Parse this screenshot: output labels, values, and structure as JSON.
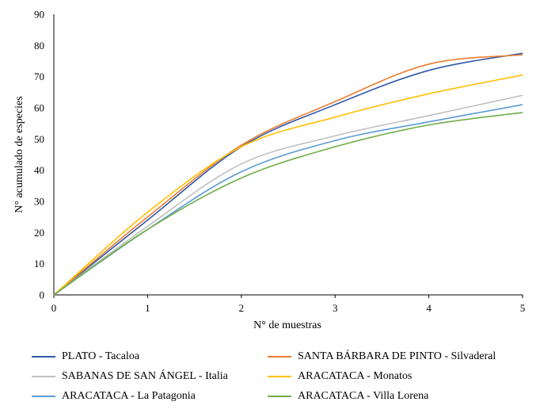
{
  "chart_data": {
    "type": "line",
    "xlabel": "N° de muestras",
    "ylabel": "N° acumulado de especies",
    "xlim": [
      0,
      5
    ],
    "ylim": [
      0,
      90
    ],
    "xticks": [
      "0",
      "1",
      "2",
      "3",
      "4",
      "5"
    ],
    "yticks": [
      "0",
      "10",
      "20",
      "30",
      "40",
      "50",
      "60",
      "70",
      "80",
      "90"
    ],
    "grid": false,
    "legend_position": "bottom",
    "x": [
      0,
      1,
      2,
      3,
      4,
      5
    ],
    "series": [
      {
        "name": "PLATO - Tacaloa",
        "color": "#2e57a8",
        "values": [
          0,
          24,
          47.5,
          61,
          72,
          77.5
        ]
      },
      {
        "name": "SANTA BÁRBARA DE PINTO - Silvaderal",
        "color": "#ed7d31",
        "values": [
          0,
          25,
          48,
          62,
          74,
          77
        ]
      },
      {
        "name": "SABANAS DE SAN ÁNGEL - Italia",
        "color": "#bfbfbf",
        "values": [
          0,
          22,
          42,
          51,
          57.5,
          64
        ]
      },
      {
        "name": "ARACATACA - Monatos",
        "color": "#ffc000",
        "values": [
          0,
          26.5,
          47.5,
          57,
          64.5,
          70.5
        ]
      },
      {
        "name": "ARACATACA - La Patagonia",
        "color": "#5b9bd5",
        "values": [
          0,
          21,
          39.5,
          49.5,
          55.5,
          61
        ]
      },
      {
        "name": "ARACATACA - Villa Lorena",
        "color": "#70ad47",
        "values": [
          0,
          21,
          37.5,
          47.5,
          54.5,
          58.5
        ]
      }
    ]
  }
}
